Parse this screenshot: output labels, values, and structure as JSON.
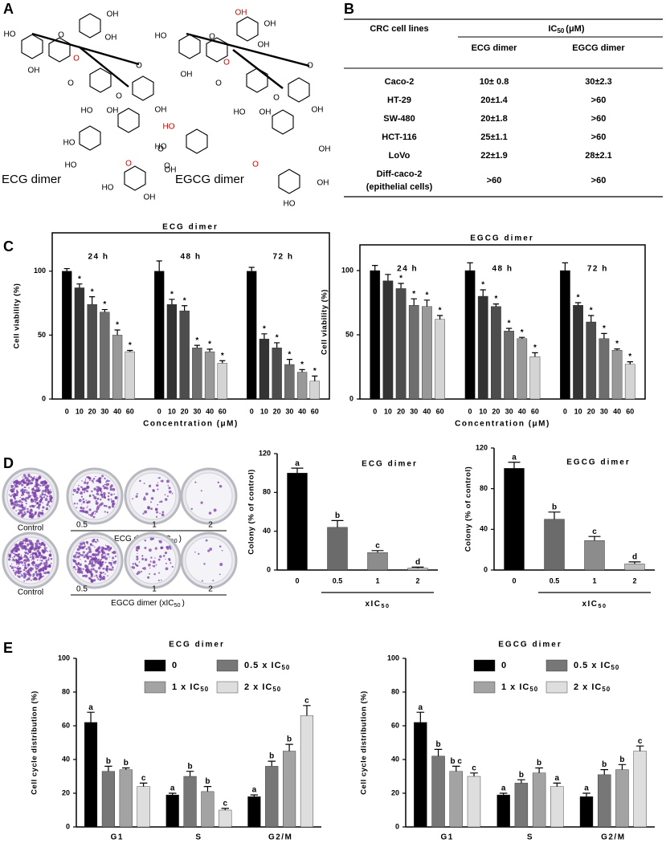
{
  "panels": {
    "a": "A",
    "b": "B",
    "c": "C",
    "d": "D",
    "e": "E"
  },
  "structures": [
    {
      "name": "ECG dimer",
      "atoms": [
        "OH",
        "OH",
        "HO",
        "O",
        "O",
        "O",
        "OH",
        "O",
        "HO",
        "OH",
        "O",
        "OH",
        "HO",
        "HO",
        "O",
        "O",
        "OH",
        "OH",
        "HO"
      ]
    },
    {
      "name": "EGCG dimer",
      "atoms": [
        "OH",
        "OH",
        "OH",
        "HO",
        "O",
        "O",
        "O",
        "OH",
        "O",
        "HO",
        "OH",
        "O",
        "OH",
        "HO",
        "HO",
        "O",
        "O",
        "OH",
        "OH",
        "HO"
      ]
    }
  ],
  "table": {
    "header": {
      "col0": "CRC cell lines",
      "ic50": {
        "text": "IC",
        "sub": "50",
        "end": "(μM)"
      },
      "cols": [
        "ECG dimer",
        "EGCG dimer"
      ]
    },
    "rows": [
      {
        "name": "Caco-2",
        "values": [
          "10± 0.8",
          "30±2.3"
        ]
      },
      {
        "name": "HT-29",
        "values": [
          "20±1.4",
          ">60"
        ]
      },
      {
        "name": "SW-480",
        "values": [
          "20±1.8",
          ">60"
        ]
      },
      {
        "name": "HCT-116",
        "values": [
          "25±1.1",
          ">60"
        ]
      },
      {
        "name": "LoVo",
        "values": [
          "22±1.9",
          "28±2.1"
        ]
      },
      {
        "name": "Diff-caco-2",
        "note": "(epithelial cells)",
        "values": [
          ">60",
          ">60"
        ]
      }
    ]
  },
  "colony": {
    "control": "Control",
    "ratios": [
      "0.5",
      "1",
      "2"
    ],
    "captions": [
      {
        "text": "ECG dimer  (xIC",
        "sub": "50",
        "end": ")"
      },
      {
        "text": "EGCG dimer (xIC",
        "sub": "50",
        "end": ")"
      }
    ]
  },
  "chart_data": [
    {
      "type": "grouped-bar",
      "title": "ECG dimer",
      "ylabel": "Cell viability (%)",
      "xlabel": "Concentration (μM)",
      "frame": true,
      "categories": [
        "0",
        "10",
        "20",
        "30",
        "40",
        "60"
      ],
      "colors": [
        "#000000",
        "#333333",
        "#4d4d4d",
        "#6e6e6e",
        "#999999",
        "#d4d4d4"
      ],
      "ylim": [
        0,
        130
      ],
      "yticks": [
        0,
        50,
        100
      ],
      "groups": [
        {
          "name": "24 h",
          "values": [
            100,
            87,
            74,
            68,
            50,
            37
          ],
          "errors": [
            2,
            3,
            6,
            2,
            4,
            1
          ],
          "labels": [
            null,
            "*",
            "*",
            "*",
            "*",
            "*"
          ]
        },
        {
          "name": "48 h",
          "values": [
            100,
            74,
            69,
            40,
            37,
            28
          ],
          "errors": [
            8,
            4,
            4,
            2,
            2,
            2
          ],
          "labels": [
            null,
            "*",
            "*",
            "*",
            "*",
            "*"
          ]
        },
        {
          "name": "72 h",
          "values": [
            100,
            47,
            40,
            27,
            21,
            14
          ],
          "errors": [
            3,
            4,
            4,
            4,
            2,
            4
          ],
          "labels": [
            null,
            "*",
            "*",
            "*",
            "*",
            "*"
          ]
        }
      ]
    },
    {
      "type": "grouped-bar",
      "title": "EGCG dimer",
      "ylabel": "Cell viability (%)",
      "xlabel": "Concentration (μM)",
      "frame": true,
      "categories": [
        "0",
        "10",
        "20",
        "30",
        "40",
        "60"
      ],
      "colors": [
        "#000000",
        "#333333",
        "#4d4d4d",
        "#6e6e6e",
        "#999999",
        "#d4d4d4"
      ],
      "ylim": [
        0,
        120
      ],
      "yticks": [
        0,
        50,
        100
      ],
      "groups": [
        {
          "name": "24 h",
          "values": [
            100,
            92,
            86,
            73,
            72,
            62
          ],
          "errors": [
            4,
            5,
            4,
            5,
            5,
            3
          ],
          "labels": [
            null,
            null,
            "*",
            "*",
            "*",
            "*"
          ]
        },
        {
          "name": "48 h",
          "values": [
            100,
            80,
            72,
            53,
            47,
            33
          ],
          "errors": [
            6,
            5,
            2,
            2,
            1,
            3
          ],
          "labels": [
            null,
            "*",
            "*",
            "*",
            "*",
            "*"
          ]
        },
        {
          "name": "72 h",
          "values": [
            100,
            73,
            60,
            47,
            38,
            27
          ],
          "errors": [
            6,
            2,
            5,
            4,
            1,
            2
          ],
          "labels": [
            null,
            "*",
            "*",
            "*",
            "*",
            "*"
          ]
        }
      ]
    },
    {
      "type": "bar",
      "title": "ECG dimer",
      "ylabel": "Colony (% of control)",
      "xlabel": {
        "text": "xIC",
        "sub": "50"
      },
      "categories": [
        "0",
        "0.5",
        "1",
        "2"
      ],
      "colors": [
        "#000000",
        "#6b6b6b",
        "#8c8c8c",
        "#bdbdbd"
      ],
      "values": [
        100,
        44,
        18,
        2
      ],
      "errors": [
        5,
        7,
        2,
        1
      ],
      "labels": [
        "a",
        "b",
        "c",
        "d"
      ],
      "ylim": [
        0,
        120
      ],
      "yticks": [
        0,
        40,
        80,
        120
      ]
    },
    {
      "type": "bar",
      "title": "EGCG dimer",
      "ylabel": "Colony (% of control)",
      "xlabel": {
        "text": "xIC",
        "sub": "50"
      },
      "categories": [
        "0",
        "0.5",
        "1",
        "2"
      ],
      "colors": [
        "#000000",
        "#6b6b6b",
        "#8c8c8c",
        "#bdbdbd"
      ],
      "values": [
        100,
        50,
        29,
        6
      ],
      "errors": [
        6,
        7,
        4,
        2
      ],
      "labels": [
        "a",
        "b",
        "c",
        "d"
      ],
      "ylim": [
        0,
        120
      ],
      "yticks": [
        0,
        40,
        80,
        120
      ]
    },
    {
      "type": "cluster-bar",
      "title": "ECG dimer",
      "ylabel": "Cell cycle distribution (%)",
      "legend": "top",
      "categories": [
        "G1",
        "S",
        "G2/M"
      ],
      "ylim": [
        0,
        100
      ],
      "yticks": [
        0,
        20,
        40,
        60,
        80,
        100
      ],
      "series": [
        {
          "name": "0",
          "color": "#000000",
          "values": [
            62,
            19,
            18
          ],
          "errors": [
            6,
            1,
            1
          ],
          "labels": [
            "a",
            "a",
            "a"
          ]
        },
        {
          "name": "0.5 x IC",
          "name_sub": "50",
          "color": "#777777",
          "values": [
            33,
            30,
            36
          ],
          "errors": [
            3,
            3,
            3
          ],
          "labels": [
            "b",
            "b",
            "b"
          ]
        },
        {
          "name": "1 x IC",
          "name_sub": "50",
          "color": "#a3a3a3",
          "values": [
            34,
            21,
            45
          ],
          "errors": [
            1,
            3,
            4
          ],
          "labels": [
            "b",
            "b",
            "b"
          ]
        },
        {
          "name": "2 x IC",
          "name_sub": "50",
          "color": "#dedede",
          "values": [
            24,
            10,
            66
          ],
          "errors": [
            2,
            1,
            6
          ],
          "labels": [
            "c",
            "c",
            "c"
          ]
        }
      ]
    },
    {
      "type": "cluster-bar",
      "title": "EGCG dimer",
      "ylabel": "Cell cycle distribution (%)",
      "legend": "top",
      "categories": [
        "G1",
        "S",
        "G2/M"
      ],
      "ylim": [
        0,
        100
      ],
      "yticks": [
        0,
        20,
        40,
        60,
        80,
        100
      ],
      "series": [
        {
          "name": "0",
          "color": "#000000",
          "values": [
            62,
            19,
            18
          ],
          "errors": [
            6,
            1,
            2
          ],
          "labels": [
            "a",
            "a",
            "a"
          ]
        },
        {
          "name": "0.5 x IC",
          "name_sub": "50",
          "color": "#777777",
          "values": [
            42,
            26,
            31
          ],
          "errors": [
            4,
            2,
            3
          ],
          "labels": [
            "b",
            "b",
            "b"
          ]
        },
        {
          "name": "1 x IC",
          "name_sub": "50",
          "color": "#a3a3a3",
          "values": [
            33,
            32,
            34
          ],
          "errors": [
            3,
            3,
            3
          ],
          "labels": [
            "b c",
            "b",
            "b"
          ]
        },
        {
          "name": "2 x IC",
          "name_sub": "50",
          "color": "#dedede",
          "values": [
            30,
            24,
            45
          ],
          "errors": [
            2,
            2,
            3
          ],
          "labels": [
            "c",
            "a",
            "c"
          ]
        }
      ]
    }
  ]
}
